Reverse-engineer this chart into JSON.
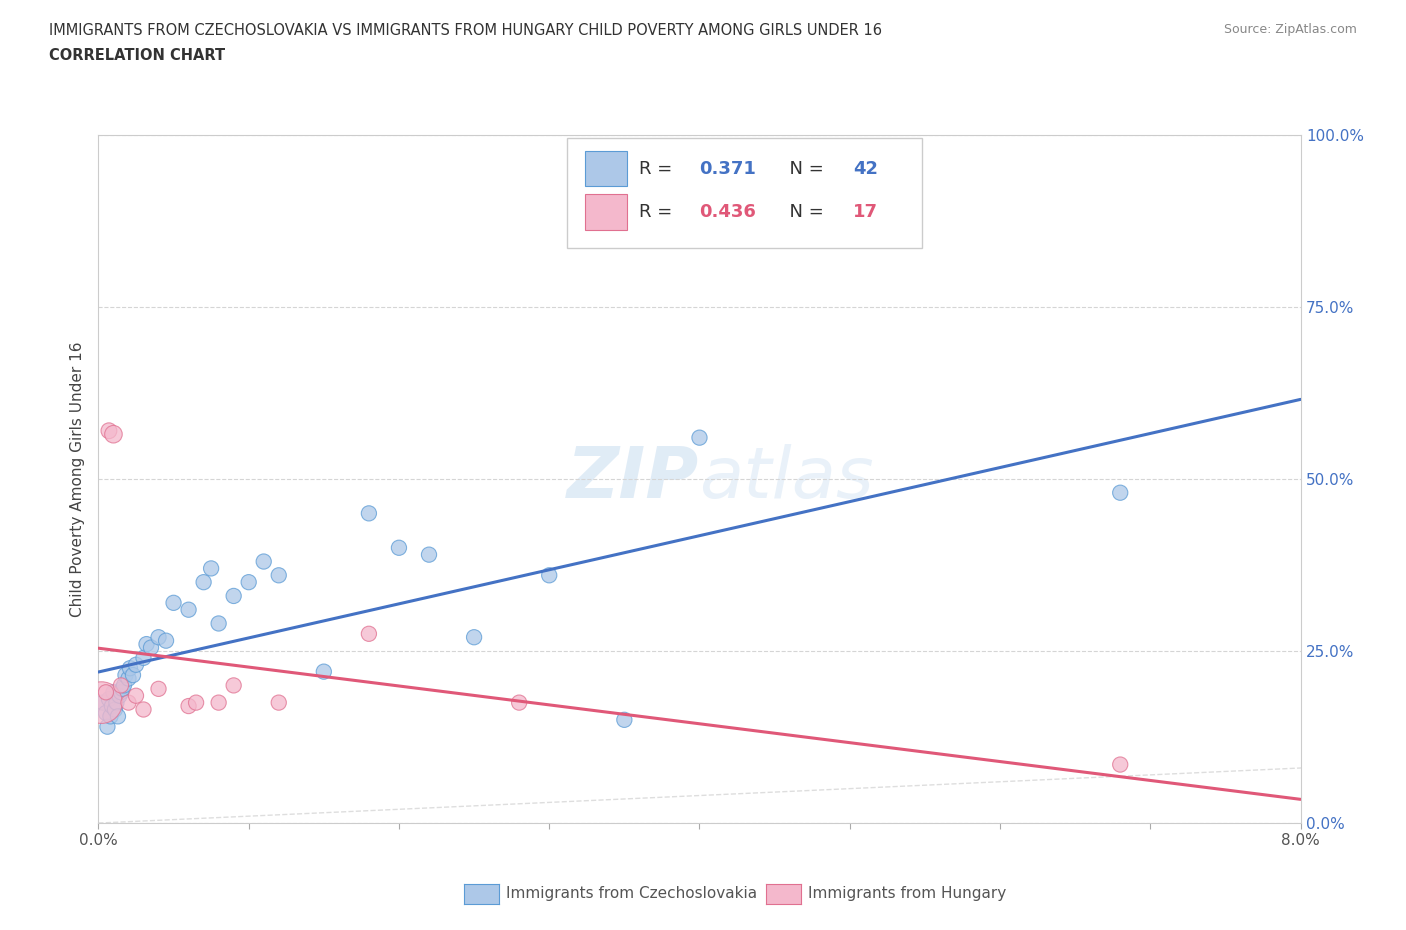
{
  "title_line1": "IMMIGRANTS FROM CZECHOSLOVAKIA VS IMMIGRANTS FROM HUNGARY CHILD POVERTY AMONG GIRLS UNDER 16",
  "title_line2": "CORRELATION CHART",
  "source_text": "Source: ZipAtlas.com",
  "ylabel": "Child Poverty Among Girls Under 16",
  "xlim": [
    0.0,
    0.08
  ],
  "ylim": [
    0.0,
    1.0
  ],
  "x_ticks": [
    0.0,
    0.01,
    0.02,
    0.03,
    0.04,
    0.05,
    0.06,
    0.07,
    0.08
  ],
  "y_ticks": [
    0.0,
    0.25,
    0.5,
    0.75,
    1.0
  ],
  "y_tick_labels_right": [
    "0.0%",
    "25.0%",
    "50.0%",
    "75.0%",
    "100.0%"
  ],
  "legend_label1": "Immigrants from Czechoslovakia",
  "legend_label2": "Immigrants from Hungary",
  "r1": 0.371,
  "n1": 42,
  "r2": 0.436,
  "n2": 17,
  "color_czech": "#adc8e8",
  "color_czech_edge": "#5b9bd5",
  "color_hungary": "#f4b8cc",
  "color_hungary_edge": "#e07090",
  "color_czech_line": "#4472c4",
  "color_hungary_line": "#e05878",
  "color_diag": "#c8c8c8",
  "watermark_zip": "ZIP",
  "watermark_atlas": "atlas",
  "czech_x": [
    0.0003,
    0.0005,
    0.0006,
    0.0007,
    0.0008,
    0.0009,
    0.001,
    0.0011,
    0.0012,
    0.0013,
    0.0014,
    0.0015,
    0.0016,
    0.0017,
    0.0018,
    0.002,
    0.0021,
    0.0023,
    0.0025,
    0.003,
    0.0032,
    0.0035,
    0.004,
    0.0045,
    0.005,
    0.006,
    0.007,
    0.0075,
    0.008,
    0.009,
    0.01,
    0.011,
    0.012,
    0.015,
    0.018,
    0.02,
    0.022,
    0.025,
    0.03,
    0.035,
    0.04,
    0.068
  ],
  "czech_y": [
    0.175,
    0.16,
    0.14,
    0.18,
    0.155,
    0.17,
    0.19,
    0.165,
    0.175,
    0.155,
    0.185,
    0.19,
    0.195,
    0.2,
    0.215,
    0.21,
    0.225,
    0.215,
    0.23,
    0.24,
    0.26,
    0.255,
    0.27,
    0.265,
    0.32,
    0.31,
    0.35,
    0.37,
    0.29,
    0.33,
    0.35,
    0.38,
    0.36,
    0.22,
    0.45,
    0.4,
    0.39,
    0.27,
    0.36,
    0.15,
    0.56,
    0.48
  ],
  "hungary_x": [
    0.0002,
    0.0005,
    0.0007,
    0.001,
    0.0015,
    0.002,
    0.0025,
    0.003,
    0.004,
    0.006,
    0.0065,
    0.008,
    0.009,
    0.012,
    0.018,
    0.028,
    0.068
  ],
  "hungary_y": [
    0.175,
    0.19,
    0.57,
    0.565,
    0.2,
    0.175,
    0.185,
    0.165,
    0.195,
    0.17,
    0.175,
    0.175,
    0.2,
    0.175,
    0.275,
    0.175,
    0.085
  ]
}
